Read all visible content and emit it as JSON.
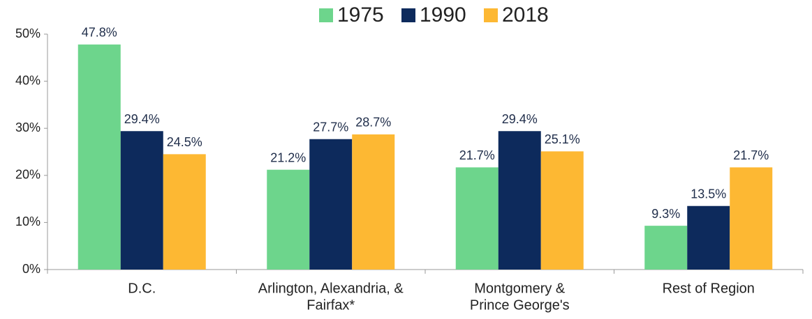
{
  "chart_data": {
    "type": "bar",
    "categories": [
      "D.C.",
      [
        "Arlington, Alexandria, &",
        "Fairfax*"
      ],
      [
        "Montgomery &",
        "Prince George's"
      ],
      "Rest of Region"
    ],
    "series": [
      {
        "name": "1975",
        "color": "#6dd58c",
        "values": [
          47.8,
          21.2,
          21.7,
          9.3
        ],
        "value_labels": [
          "47.8%",
          "21.2%",
          "21.7%",
          "9.3%"
        ]
      },
      {
        "name": "1990",
        "color": "#0d2a5c",
        "values": [
          29.4,
          27.7,
          29.4,
          13.5
        ],
        "value_labels": [
          "29.4%",
          "27.7%",
          "29.4%",
          "13.5%"
        ]
      },
      {
        "name": "2018",
        "color": "#fdb833",
        "values": [
          24.5,
          28.7,
          25.1,
          21.7
        ],
        "value_labels": [
          "24.5%",
          "28.7%",
          "25.1%",
          "21.7%"
        ]
      }
    ],
    "ylim": [
      0,
      50
    ],
    "yticks": [
      {
        "value": 0,
        "label": "0%"
      },
      {
        "value": 10,
        "label": "10%"
      },
      {
        "value": 20,
        "label": "20%"
      },
      {
        "value": 30,
        "label": "30%"
      },
      {
        "value": 40,
        "label": "40%"
      },
      {
        "value": 50,
        "label": "50%"
      }
    ],
    "grid": false,
    "legend": "top"
  }
}
